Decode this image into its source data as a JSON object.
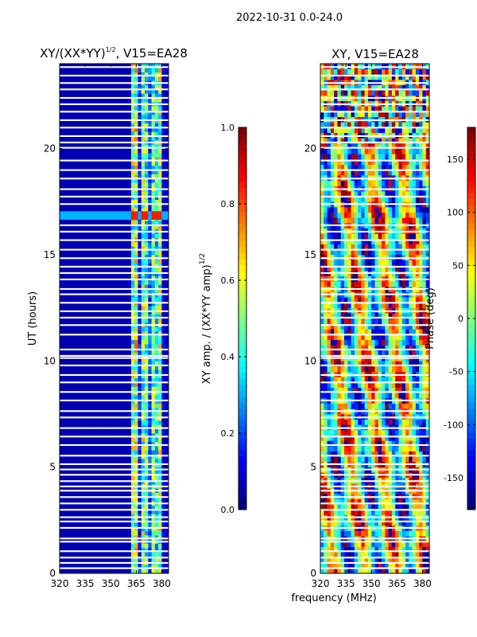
{
  "suptitle": "2022-10-31 0.0-24.0",
  "colors": {
    "jet": [
      "#00007f",
      "#0000ff",
      "#007fff",
      "#00ffff",
      "#7fff7f",
      "#ffff00",
      "#ff7f00",
      "#ff0000",
      "#7f0000"
    ],
    "flagged": "#ffffff",
    "axis": "#000000"
  },
  "chart_data": [
    {
      "type": "heatmap",
      "title_main": "XY/(XX*YY)",
      "title_sup": "1/2",
      "title_tail": ", V15=EA28",
      "xlabel": "",
      "ylabel": "UT (hours)",
      "xlim": [
        320,
        384
      ],
      "ylim": [
        0,
        24
      ],
      "xticks": [
        "320",
        "335",
        "350",
        "365",
        "380"
      ],
      "xtick_values": [
        320,
        335,
        350,
        365,
        380
      ],
      "yticks": [
        "0",
        "5",
        "10",
        "15",
        "20"
      ],
      "ytick_values": [
        0,
        5,
        10,
        15,
        20
      ],
      "band_freqs": [
        361,
        363,
        365,
        367,
        369,
        371,
        373,
        375,
        377,
        379,
        381
      ],
      "band_values": [
        0.05,
        0.5,
        0.55,
        0.15,
        0.5,
        0.45,
        0.2,
        0.45,
        0.4,
        0.5,
        0.1
      ],
      "background_value": 0.05,
      "highlight": {
        "ut_start": 16.65,
        "ut_end": 17.05,
        "value": 0.85
      },
      "colorbar": {
        "label_main": "XY amp. / (XX*YY amp)",
        "label_sup": "1/2",
        "range": [
          0,
          1
        ],
        "ticks": [
          "0.0",
          "0.2",
          "0.4",
          "0.6",
          "0.8",
          "1.0"
        ],
        "tick_values": [
          0,
          0.2,
          0.4,
          0.6,
          0.8,
          1.0
        ]
      }
    },
    {
      "type": "heatmap",
      "title": "XY, V15=EA28",
      "xlabel": "frequency (MHz)",
      "ylabel": "",
      "xlim": [
        320,
        384
      ],
      "ylim": [
        0,
        24
      ],
      "xticks": [
        "320",
        "335",
        "350",
        "365",
        "380"
      ],
      "xtick_values": [
        320,
        335,
        350,
        365,
        380
      ],
      "yticks": [
        "0",
        "5",
        "10",
        "15",
        "20"
      ],
      "ytick_values": [
        0,
        5,
        10,
        15,
        20
      ],
      "value_range": [
        -180,
        180
      ],
      "colorbar": {
        "label": "Phase (deg)",
        "range": [
          -180,
          180
        ],
        "ticks": [
          "-150",
          "-100",
          "-50",
          "0",
          "50",
          "100",
          "150"
        ],
        "tick_values": [
          -150,
          -100,
          -50,
          0,
          50,
          100,
          150
        ]
      }
    }
  ],
  "flagged_ut": [
    0.2,
    0.45,
    0.7,
    1.0,
    1.45,
    1.6,
    2.1,
    2.4,
    2.6,
    2.95,
    3.25,
    3.55,
    3.85,
    4.05,
    4.3,
    4.6,
    4.85,
    5.1,
    5.5,
    6.0,
    6.4,
    6.8,
    7.3,
    7.6,
    8.1,
    8.5,
    8.95,
    9.3,
    9.75,
    10.1,
    10.2,
    10.5,
    11.2,
    11.65,
    12.0,
    12.3,
    12.7,
    13.1,
    13.35,
    13.8,
    14.1,
    14.4,
    14.8,
    15.2,
    15.65,
    16.05,
    16.35,
    17.35,
    17.7,
    18.05,
    18.55,
    18.95,
    19.4,
    20.0,
    20.25,
    20.55,
    20.95,
    21.3,
    21.7,
    22.05,
    22.35,
    22.75,
    23.05,
    23.4,
    23.8
  ]
}
